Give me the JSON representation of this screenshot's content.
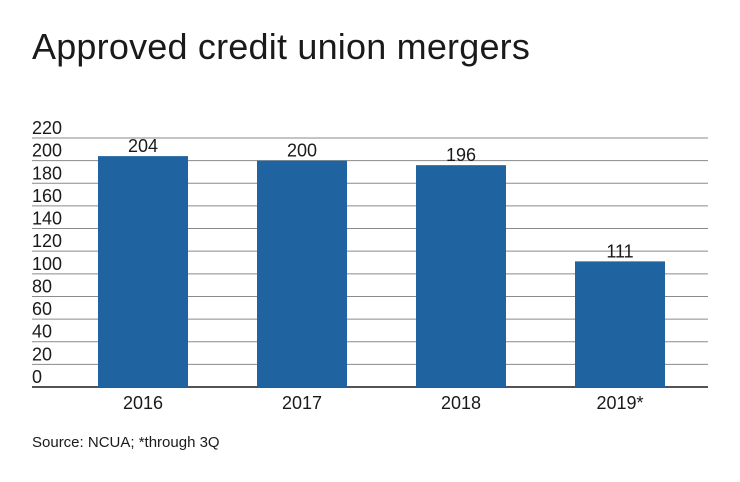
{
  "title": "Approved credit union mergers",
  "source": "Source: NCUA; *through 3Q",
  "colors": {
    "bar": "#1f64a0",
    "grid": "#8a8a8a",
    "axis": "#1a1a1a"
  },
  "chart_data": {
    "type": "bar",
    "title": "Approved credit union mergers",
    "categories": [
      "2016",
      "2017",
      "2018",
      "2019*"
    ],
    "values": [
      204,
      200,
      196,
      111
    ],
    "data_labels": [
      "204",
      "200",
      "196",
      "111"
    ],
    "yticks": [
      0,
      20,
      40,
      60,
      80,
      100,
      120,
      140,
      160,
      180,
      200,
      220
    ],
    "ylim": [
      0,
      220
    ],
    "grid": true,
    "legend": "none"
  }
}
